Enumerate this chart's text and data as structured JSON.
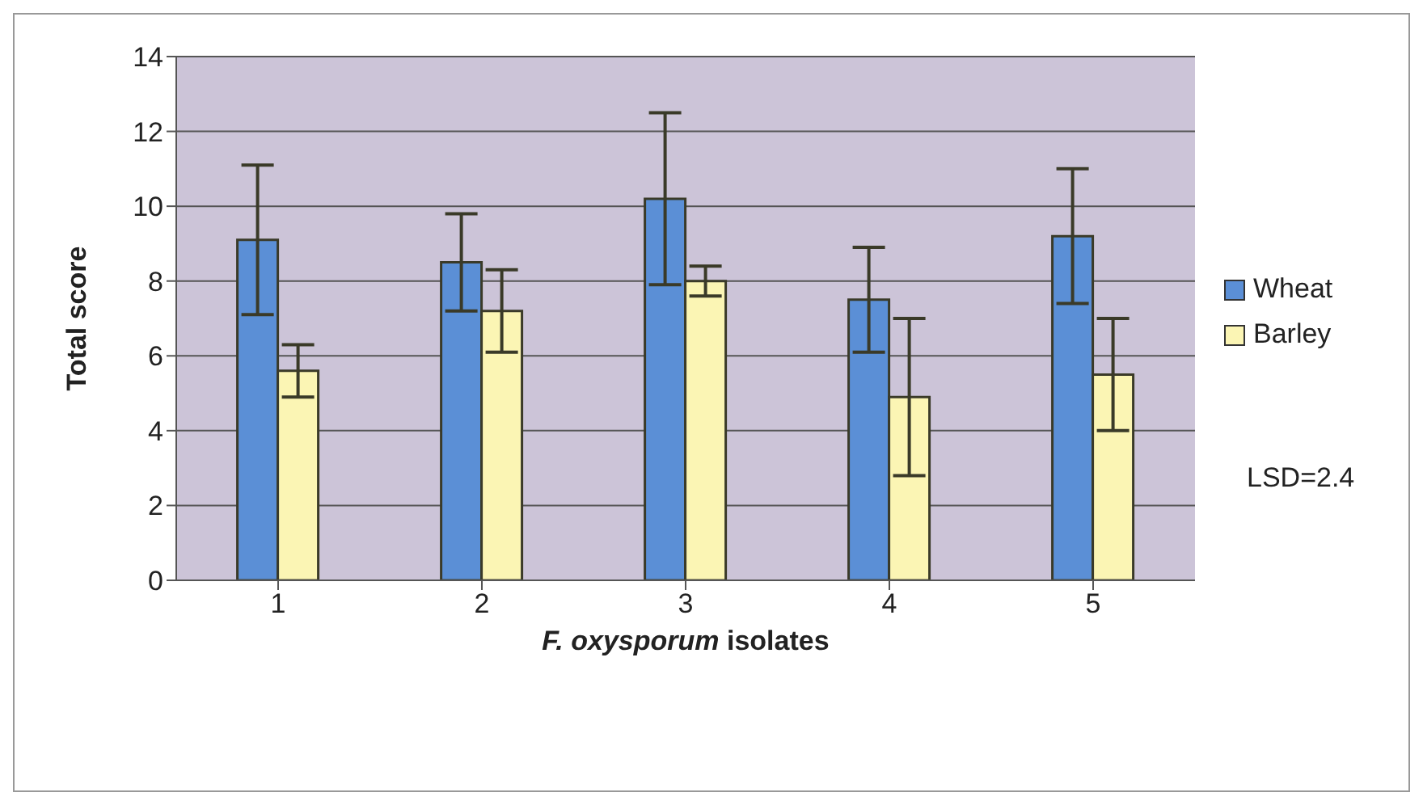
{
  "chart_data": {
    "type": "bar",
    "xlabel": "F. oxysporum isolates",
    "ylabel": "Total score",
    "categories": [
      "1",
      "2",
      "3",
      "4",
      "5"
    ],
    "series": [
      {
        "name": "Wheat",
        "color": "#5b8fd6",
        "values": [
          9.1,
          8.5,
          10.2,
          7.5,
          9.2
        ],
        "errors": [
          2,
          1.3,
          2.3,
          1.4,
          1.8
        ]
      },
      {
        "name": "Barley",
        "color": "#fbf5b4",
        "values": [
          5.6,
          7.2,
          8.0,
          4.9,
          5.5
        ],
        "errors": [
          0.7,
          1.1,
          0.4,
          2.1,
          1.5
        ]
      }
    ],
    "ylim": [
      0,
      14
    ],
    "yticks": [
      0,
      2,
      4,
      6,
      8,
      10,
      12,
      14
    ],
    "grid": "y",
    "legend": "right",
    "annotations": [
      "LSD=2.4"
    ]
  }
}
